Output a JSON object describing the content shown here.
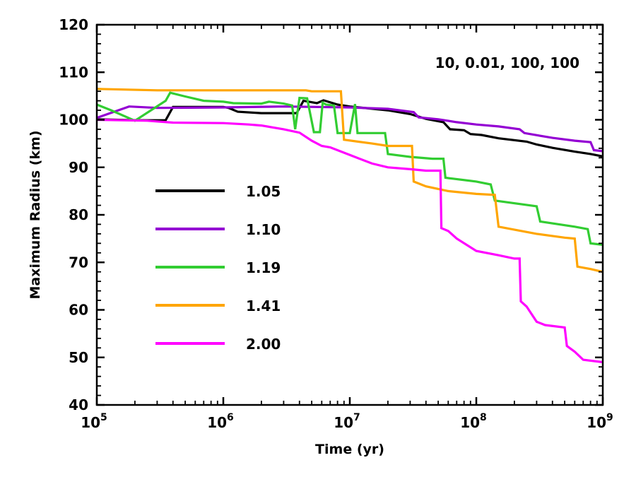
{
  "chart_data": {
    "type": "line",
    "title": "",
    "annotation": "10, 0.01, 100, 100",
    "xlabel": "Time (yr)",
    "ylabel": "Maximum Radius (km)",
    "xscale": "log",
    "xlim": [
      100000,
      1000000000
    ],
    "ylim": [
      40,
      120
    ],
    "x_ticks": [
      {
        "value": 100000,
        "base": "10",
        "exp": "5"
      },
      {
        "value": 1000000,
        "base": "10",
        "exp": "6"
      },
      {
        "value": 10000000,
        "base": "10",
        "exp": "7"
      },
      {
        "value": 100000000,
        "base": "10",
        "exp": "8"
      },
      {
        "value": 1000000000,
        "base": "10",
        "exp": "9"
      }
    ],
    "y_ticks": [
      40,
      50,
      60,
      70,
      80,
      90,
      100,
      110,
      120
    ],
    "legend_location": "center-left",
    "series": [
      {
        "name": "1.05",
        "color": "#000000",
        "points": [
          [
            100000,
            100.1
          ],
          [
            210000,
            99.9
          ],
          [
            350000,
            99.9
          ],
          [
            400000,
            102.7
          ],
          [
            1000000,
            102.7
          ],
          [
            1100000,
            102.5
          ],
          [
            1300000,
            101.7
          ],
          [
            2000000,
            101.4
          ],
          [
            3800000,
            101.4
          ],
          [
            4300000,
            104
          ],
          [
            5500000,
            103.5
          ],
          [
            6200000,
            104.1
          ],
          [
            8000000,
            103.2
          ],
          [
            10000000,
            102.8
          ],
          [
            20000000,
            102
          ],
          [
            30000000,
            101.2
          ],
          [
            40000000,
            100.2
          ],
          [
            55000000,
            99.5
          ],
          [
            62000000,
            98
          ],
          [
            80000000,
            97.8
          ],
          [
            90000000,
            97
          ],
          [
            110000000,
            96.8
          ],
          [
            150000000,
            96.1
          ],
          [
            250000000,
            95.4
          ],
          [
            300000000,
            94.8
          ],
          [
            400000000,
            94.1
          ],
          [
            600000000,
            93.3
          ],
          [
            800000000,
            92.8
          ],
          [
            1000000000,
            92.3
          ]
        ]
      },
      {
        "name": "1.10",
        "color": "#9400d3",
        "points": [
          [
            100000,
            100.4
          ],
          [
            180000,
            102.8
          ],
          [
            300000,
            102.5
          ],
          [
            1000000,
            102.6
          ],
          [
            3000000,
            102.8
          ],
          [
            10000000,
            102.6
          ],
          [
            20000000,
            102.3
          ],
          [
            32000000,
            101.6
          ],
          [
            35000000,
            100.5
          ],
          [
            50000000,
            100.1
          ],
          [
            70000000,
            99.5
          ],
          [
            100000000,
            99
          ],
          [
            150000000,
            98.6
          ],
          [
            220000000,
            98
          ],
          [
            240000000,
            97.2
          ],
          [
            400000000,
            96.2
          ],
          [
            600000000,
            95.6
          ],
          [
            800000000,
            95.3
          ],
          [
            850000000,
            93.6
          ],
          [
            1000000000,
            93.4
          ]
        ]
      },
      {
        "name": "1.19",
        "color": "#32cd32",
        "points": [
          [
            100000,
            103.2
          ],
          [
            130000,
            102
          ],
          [
            200000,
            99.8
          ],
          [
            350000,
            104
          ],
          [
            380000,
            105.7
          ],
          [
            500000,
            104.9
          ],
          [
            700000,
            104
          ],
          [
            1000000,
            103.8
          ],
          [
            1200000,
            103.5
          ],
          [
            2000000,
            103.4
          ],
          [
            2300000,
            103.8
          ],
          [
            3000000,
            103.4
          ],
          [
            3500000,
            103
          ],
          [
            3700000,
            98
          ],
          [
            4000000,
            104.6
          ],
          [
            4600000,
            104.5
          ],
          [
            5200000,
            97.4
          ],
          [
            5800000,
            97.4
          ],
          [
            6100000,
            103.6
          ],
          [
            6500000,
            103.2
          ],
          [
            7500000,
            103
          ],
          [
            8000000,
            97.2
          ],
          [
            10000000,
            97.2
          ],
          [
            11000000,
            103.3
          ],
          [
            11500000,
            97.2
          ],
          [
            19000000,
            97.2
          ],
          [
            20000000,
            92.8
          ],
          [
            30000000,
            92.2
          ],
          [
            45000000,
            91.8
          ],
          [
            55000000,
            91.8
          ],
          [
            57000000,
            87.8
          ],
          [
            100000000,
            87
          ],
          [
            130000000,
            86.4
          ],
          [
            140000000,
            83
          ],
          [
            300000000,
            81.8
          ],
          [
            320000000,
            78.6
          ],
          [
            600000000,
            77.5
          ],
          [
            760000000,
            77
          ],
          [
            800000000,
            74
          ],
          [
            1000000000,
            73.7
          ]
        ]
      },
      {
        "name": "1.41",
        "color": "#ffa500",
        "points": [
          [
            100000,
            106.5
          ],
          [
            300000,
            106.2
          ],
          [
            600000,
            106.2
          ],
          [
            1000000,
            106.2
          ],
          [
            3000000,
            106.2
          ],
          [
            4000000,
            106.2
          ],
          [
            4500000,
            106.2
          ],
          [
            5000000,
            106
          ],
          [
            8500000,
            106
          ],
          [
            9000000,
            95.8
          ],
          [
            15000000,
            95
          ],
          [
            20000000,
            94.5
          ],
          [
            31000000,
            94.5
          ],
          [
            32000000,
            87
          ],
          [
            40000000,
            86
          ],
          [
            60000000,
            85
          ],
          [
            100000000,
            84.4
          ],
          [
            140000000,
            84.2
          ],
          [
            150000000,
            77.5
          ],
          [
            300000000,
            76
          ],
          [
            500000000,
            75.2
          ],
          [
            600000000,
            75
          ],
          [
            630000000,
            69.1
          ],
          [
            800000000,
            68.6
          ],
          [
            1000000000,
            68
          ]
        ]
      },
      {
        "name": "2.00",
        "color": "#ff00ff",
        "points": [
          [
            100000,
            100
          ],
          [
            250000,
            99.8
          ],
          [
            400000,
            99.4
          ],
          [
            1000000,
            99.3
          ],
          [
            1600000,
            99
          ],
          [
            2000000,
            98.8
          ],
          [
            3000000,
            98
          ],
          [
            4000000,
            97.3
          ],
          [
            5000000,
            95.6
          ],
          [
            6000000,
            94.5
          ],
          [
            7000000,
            94.2
          ],
          [
            10000000,
            92.6
          ],
          [
            15000000,
            90.8
          ],
          [
            20000000,
            90
          ],
          [
            30000000,
            89.6
          ],
          [
            40000000,
            89.3
          ],
          [
            52000000,
            89.3
          ],
          [
            53000000,
            77.2
          ],
          [
            60000000,
            76.6
          ],
          [
            70000000,
            75
          ],
          [
            100000000,
            72.4
          ],
          [
            150000000,
            71.5
          ],
          [
            200000000,
            70.8
          ],
          [
            220000000,
            70.8
          ],
          [
            225000000,
            61.8
          ],
          [
            250000000,
            60.7
          ],
          [
            300000000,
            57.5
          ],
          [
            350000000,
            56.8
          ],
          [
            500000000,
            56.3
          ],
          [
            520000000,
            52.4
          ],
          [
            600000000,
            51.2
          ],
          [
            700000000,
            49.5
          ],
          [
            1000000000,
            49
          ]
        ]
      }
    ]
  }
}
